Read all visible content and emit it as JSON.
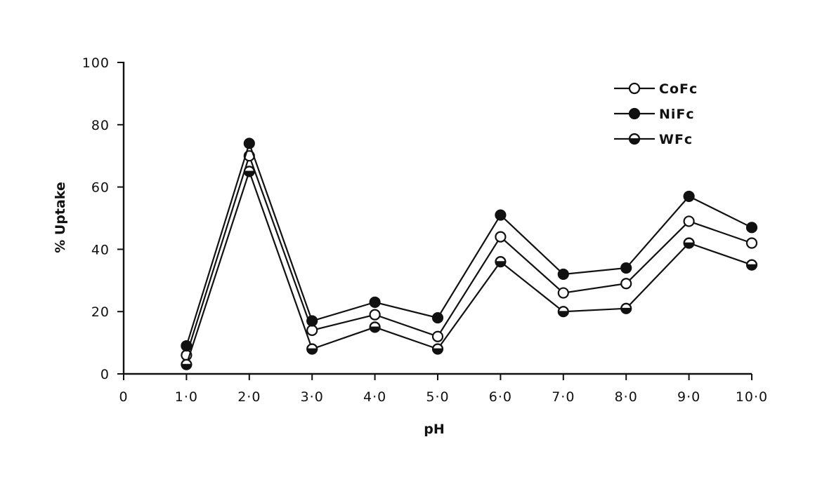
{
  "chart_data": {
    "type": "line",
    "xlabel": "pH",
    "ylabel": "% Uptake",
    "xlim": [
      0,
      10
    ],
    "ylim": [
      0,
      100
    ],
    "x_ticks": [
      0,
      1,
      2,
      3,
      4,
      5,
      6,
      7,
      8,
      9,
      10
    ],
    "x_tick_labels": [
      "0",
      "1·0",
      "2·0",
      "3·0",
      "4·0",
      "5·0",
      "6·0",
      "7·0",
      "8·0",
      "9·0",
      "10·0"
    ],
    "y_ticks": [
      0,
      20,
      40,
      60,
      80,
      100
    ],
    "y_tick_labels": [
      "0",
      "20",
      "40",
      "60",
      "80",
      "100"
    ],
    "grid": false,
    "legend_position": "top-right",
    "x": [
      1,
      2,
      3,
      4,
      5,
      6,
      7,
      8,
      9,
      10
    ],
    "series": [
      {
        "name": "CoFc",
        "marker": "open-circle",
        "values": [
          6,
          70,
          14,
          19,
          12,
          44,
          26,
          29,
          49,
          42
        ]
      },
      {
        "name": "NiFc",
        "marker": "filled-circle",
        "values": [
          9,
          74,
          17,
          23,
          18,
          51,
          32,
          34,
          57,
          47
        ]
      },
      {
        "name": "WFc",
        "marker": "half-filled-circle",
        "values": [
          3,
          65,
          8,
          15,
          8,
          36,
          20,
          21,
          42,
          35
        ]
      }
    ]
  }
}
